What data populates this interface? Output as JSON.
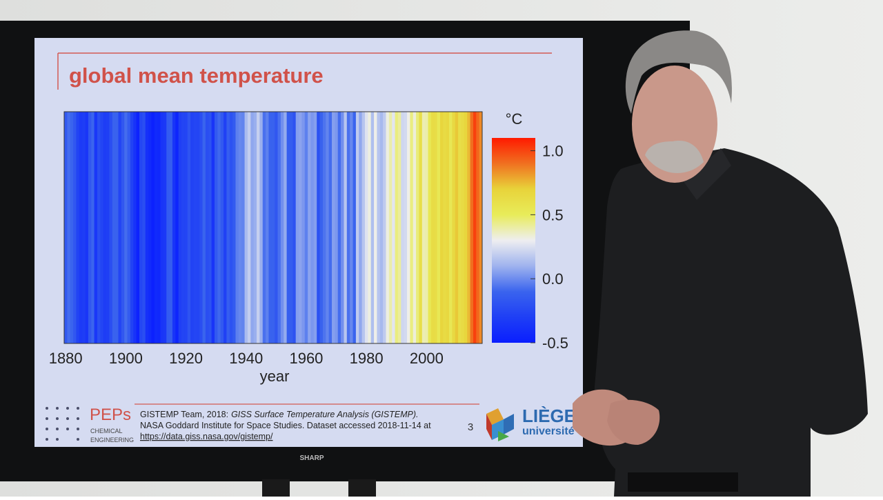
{
  "chart_data": {
    "type": "stripes",
    "title": "global mean temperature",
    "xlabel": "year",
    "colorbar_label": "°C",
    "x": [
      1880,
      1881,
      1882,
      1883,
      1884,
      1885,
      1886,
      1887,
      1888,
      1889,
      1890,
      1891,
      1892,
      1893,
      1894,
      1895,
      1896,
      1897,
      1898,
      1899,
      1900,
      1901,
      1902,
      1903,
      1904,
      1905,
      1906,
      1907,
      1908,
      1909,
      1910,
      1911,
      1912,
      1913,
      1914,
      1915,
      1916,
      1917,
      1918,
      1919,
      1920,
      1921,
      1922,
      1923,
      1924,
      1925,
      1926,
      1927,
      1928,
      1929,
      1930,
      1931,
      1932,
      1933,
      1934,
      1935,
      1936,
      1937,
      1938,
      1939,
      1940,
      1941,
      1942,
      1943,
      1944,
      1945,
      1946,
      1947,
      1948,
      1949,
      1950,
      1951,
      1952,
      1953,
      1954,
      1955,
      1956,
      1957,
      1958,
      1959,
      1960,
      1961,
      1962,
      1963,
      1964,
      1965,
      1966,
      1967,
      1968,
      1969,
      1970,
      1971,
      1972,
      1973,
      1974,
      1975,
      1976,
      1977,
      1978,
      1979,
      1980,
      1981,
      1982,
      1983,
      1984,
      1985,
      1986,
      1987,
      1988,
      1989,
      1990,
      1991,
      1992,
      1993,
      1994,
      1995,
      1996,
      1997,
      1998,
      1999,
      2000,
      2001,
      2002,
      2003,
      2004,
      2005,
      2006,
      2007,
      2008,
      2009,
      2010,
      2011,
      2012,
      2013,
      2014,
      2015,
      2016,
      2017,
      2018
    ],
    "values": [
      -0.16,
      -0.08,
      -0.1,
      -0.17,
      -0.28,
      -0.33,
      -0.31,
      -0.36,
      -0.17,
      -0.1,
      -0.35,
      -0.22,
      -0.27,
      -0.31,
      -0.3,
      -0.22,
      -0.11,
      -0.11,
      -0.27,
      -0.17,
      -0.08,
      -0.15,
      -0.28,
      -0.37,
      -0.47,
      -0.26,
      -0.22,
      -0.39,
      -0.43,
      -0.48,
      -0.43,
      -0.44,
      -0.36,
      -0.34,
      -0.15,
      -0.14,
      -0.36,
      -0.46,
      -0.3,
      -0.27,
      -0.27,
      -0.19,
      -0.28,
      -0.26,
      -0.27,
      -0.22,
      -0.1,
      -0.22,
      -0.2,
      -0.36,
      -0.16,
      -0.09,
      -0.16,
      -0.29,
      -0.13,
      -0.2,
      -0.15,
      -0.03,
      -0.01,
      -0.02,
      0.13,
      0.19,
      0.07,
      0.09,
      0.2,
      0.09,
      -0.07,
      -0.03,
      -0.11,
      -0.11,
      -0.17,
      -0.07,
      0.01,
      0.08,
      -0.13,
      -0.14,
      -0.19,
      0.05,
      0.06,
      0.03,
      -0.03,
      0.06,
      0.03,
      0.05,
      -0.2,
      -0.11,
      -0.06,
      -0.02,
      -0.08,
      0.05,
      0.03,
      -0.08,
      0.01,
      0.16,
      -0.07,
      -0.01,
      -0.1,
      0.18,
      0.07,
      0.16,
      0.26,
      0.32,
      0.14,
      0.31,
      0.16,
      0.12,
      0.18,
      0.32,
      0.39,
      0.27,
      0.45,
      0.41,
      0.22,
      0.23,
      0.31,
      0.45,
      0.33,
      0.46,
      0.61,
      0.38,
      0.39,
      0.54,
      0.63,
      0.62,
      0.53,
      0.68,
      0.64,
      0.66,
      0.54,
      0.65,
      0.72,
      0.61,
      0.64,
      0.68,
      0.75,
      0.9,
      1.01,
      0.92,
      0.85
    ],
    "xlim": [
      1879.5,
      2018.5
    ],
    "xticks": [
      1880,
      1900,
      1920,
      1940,
      1960,
      1980,
      2000
    ],
    "clim": [
      -0.5,
      1.1
    ],
    "cticks": [
      {
        "value": 1.0,
        "label": "1.0"
      },
      0.5,
      {
        "value": 0.0,
        "label": "0.0"
      },
      -0.5
    ],
    "colormap": [
      "#0a1eff",
      "#1f3ff5",
      "#3a64ee",
      "#9fb3ee",
      "#eeeef0",
      "#e8ec5a",
      "#e8d33a",
      "#f07020",
      "#ff1a00"
    ]
  },
  "slide": {
    "logo": "PEPs",
    "logo_sub_1": "CHEMICAL",
    "logo_sub_2": "ENGINEERING",
    "citation_1a": "GISTEMP Team, 2018:",
    "citation_1b": "GISS Surface Temperature Analysis (GISTEMP).",
    "citation_2": "NASA Goddard Institute for Space Studies. Dataset accessed 2018-11-14 at",
    "citation_3": "https://data.giss.nasa.gov/gistemp/",
    "page": "3",
    "uni_1": "LIÈGE",
    "uni_2": "université"
  },
  "monitor": {
    "brand": "SHARP"
  }
}
